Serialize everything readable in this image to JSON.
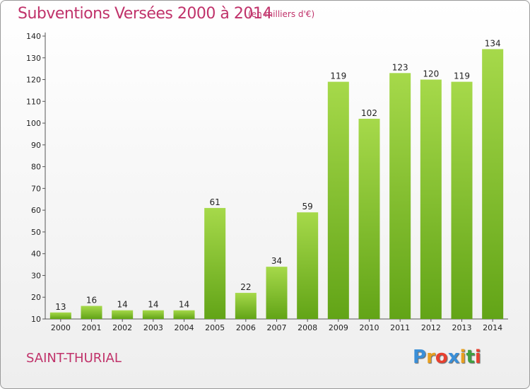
{
  "title": "Subventions Versées 2000 à 2014",
  "units": "(en milliers d'€)",
  "commune": "SAINT-THURIAL",
  "brand": {
    "letters": [
      "P",
      "r",
      "o",
      "x",
      "i",
      "t",
      "i"
    ],
    "colors": [
      "#3a8fd8",
      "#e8a020",
      "#e84030",
      "#3a8fd8",
      "#e8a020",
      "#40a040",
      "#e84030"
    ]
  },
  "colors": {
    "bar_top": "#a6d94a",
    "bar_bottom": "#62a417",
    "text": "#c0326a"
  },
  "chart_data": {
    "type": "bar",
    "categories": [
      "2000",
      "2001",
      "2002",
      "2003",
      "2004",
      "2005",
      "2006",
      "2007",
      "2008",
      "2009",
      "2010",
      "2011",
      "2012",
      "2013",
      "2014"
    ],
    "values": [
      13,
      16,
      14,
      14,
      14,
      61,
      22,
      34,
      59,
      119,
      102,
      123,
      120,
      119,
      134
    ],
    "ylim": [
      10,
      140
    ],
    "yticks": [
      10,
      20,
      30,
      40,
      50,
      60,
      70,
      80,
      90,
      100,
      110,
      120,
      130,
      140
    ],
    "grid": false,
    "legend": "none"
  }
}
